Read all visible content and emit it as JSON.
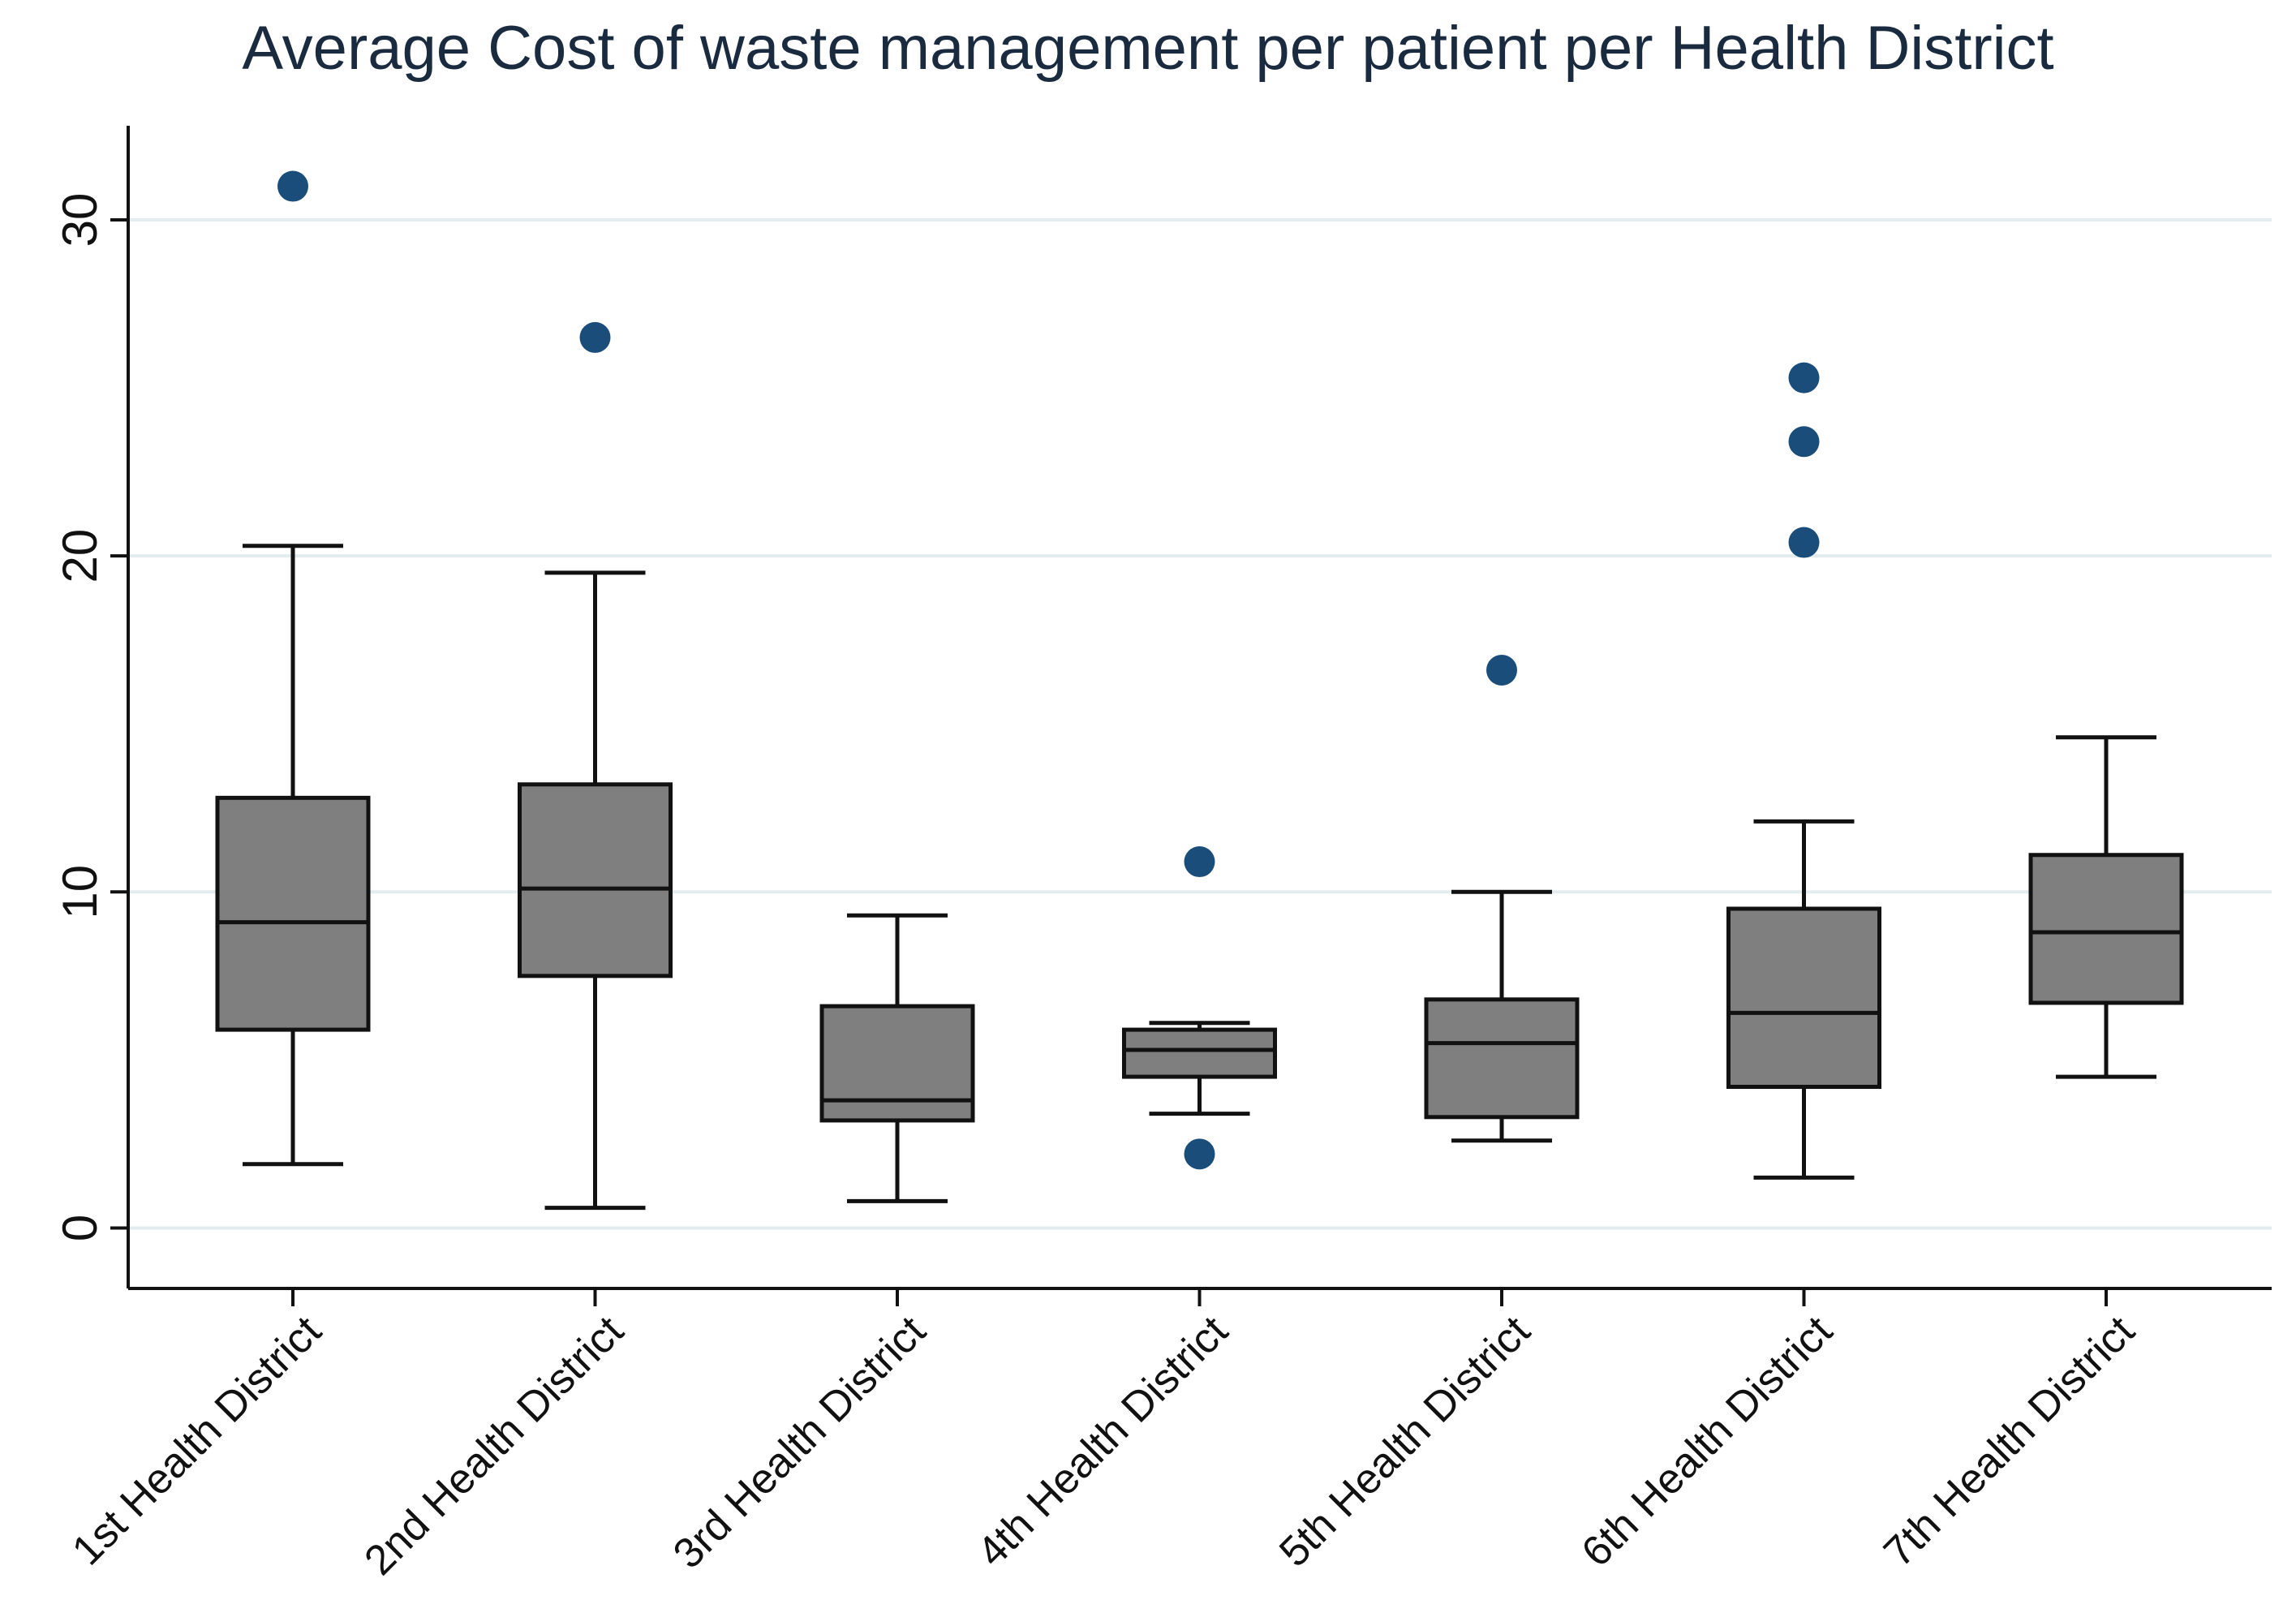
{
  "chart_data": {
    "type": "box",
    "title": "Average Cost of waste management per patient per Health District",
    "xlabel": "",
    "ylabel": "",
    "ylim": [
      -1.8,
      32.8
    ],
    "yticks": [
      0,
      10,
      20,
      30
    ],
    "grid": true,
    "categories": [
      "1st Health District",
      "2nd Health District",
      "3rd Health District",
      "4th Health District",
      "5th Health District",
      "6th Health District",
      "7th Health District"
    ],
    "boxes": [
      {
        "whisker_low": 1.9,
        "q1": 5.9,
        "median": 9.1,
        "q3": 12.8,
        "whisker_high": 20.3,
        "outliers": [
          31.0
        ]
      },
      {
        "whisker_low": 0.6,
        "q1": 7.5,
        "median": 10.1,
        "q3": 13.2,
        "whisker_high": 19.5,
        "outliers": [
          26.5
        ]
      },
      {
        "whisker_low": 0.8,
        "q1": 3.2,
        "median": 3.8,
        "q3": 6.6,
        "whisker_high": 9.3,
        "outliers": []
      },
      {
        "whisker_low": 3.4,
        "q1": 4.5,
        "median": 5.3,
        "q3": 5.9,
        "whisker_high": 6.1,
        "outliers": [
          10.9,
          2.2
        ]
      },
      {
        "whisker_low": 2.6,
        "q1": 3.3,
        "median": 5.5,
        "q3": 6.8,
        "whisker_high": 10.0,
        "outliers": [
          16.6
        ]
      },
      {
        "whisker_low": 1.5,
        "q1": 4.2,
        "median": 6.4,
        "q3": 9.5,
        "whisker_high": 12.1,
        "outliers": [
          25.3,
          23.4,
          20.4
        ]
      },
      {
        "whisker_low": 4.5,
        "q1": 6.7,
        "median": 8.8,
        "q3": 11.1,
        "whisker_high": 14.6,
        "outliers": []
      }
    ],
    "colors": {
      "box": "#7f7f7f",
      "outlier": "#1b4d7a",
      "grid": "#e3ecef",
      "title": "#1a2b3f"
    }
  }
}
